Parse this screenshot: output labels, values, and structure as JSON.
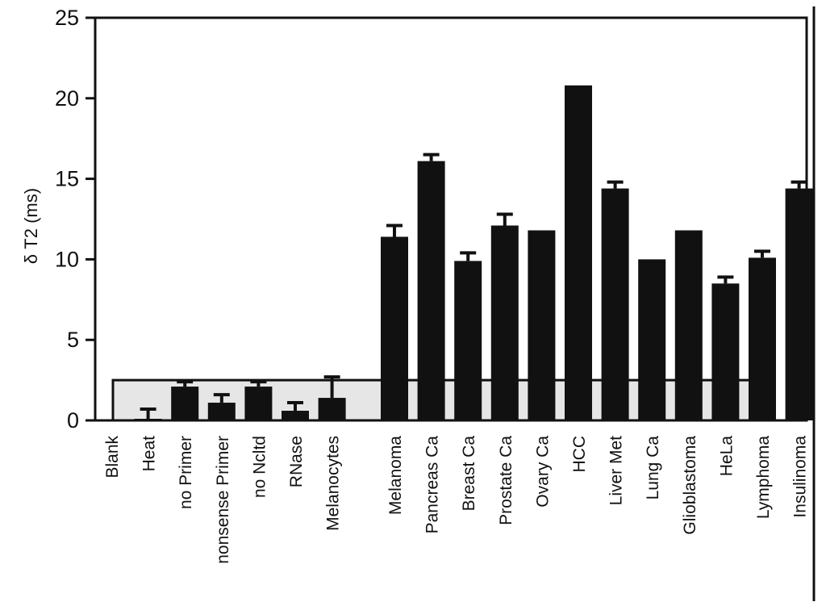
{
  "chart_data": {
    "type": "bar",
    "ylabel": "δ T2 (ms)",
    "ylim": [
      0,
      25
    ],
    "yticks": [
      0,
      5,
      10,
      15,
      20,
      25
    ],
    "threshold": 2.5,
    "grid": false,
    "bar_color": "#111111",
    "band_color": "#e6e6e6",
    "categories": [
      "Blank",
      "Heat",
      "no Primer",
      "nonsense Primer",
      "no Ncltd",
      "RNase",
      "Melanocytes",
      "Melanoma",
      "Pancreas Ca",
      "Breast Ca",
      "Prostate Ca",
      "Ovary Ca",
      "HCC",
      "Liver Met",
      "Lung Ca",
      "Glioblastoma",
      "HeLa",
      "Lymphoma",
      "Insulinoma"
    ],
    "values": [
      0.0,
      0.1,
      2.1,
      1.1,
      2.1,
      0.6,
      1.4,
      11.4,
      16.1,
      9.9,
      12.1,
      11.8,
      20.8,
      14.4,
      10.0,
      11.8,
      8.5,
      10.1,
      14.4
    ],
    "errors": [
      0.0,
      0.6,
      0.3,
      0.5,
      0.3,
      0.5,
      1.3,
      0.7,
      0.4,
      0.5,
      0.7,
      0.0,
      0.0,
      0.4,
      0.0,
      0.0,
      0.4,
      0.4,
      0.4
    ]
  }
}
